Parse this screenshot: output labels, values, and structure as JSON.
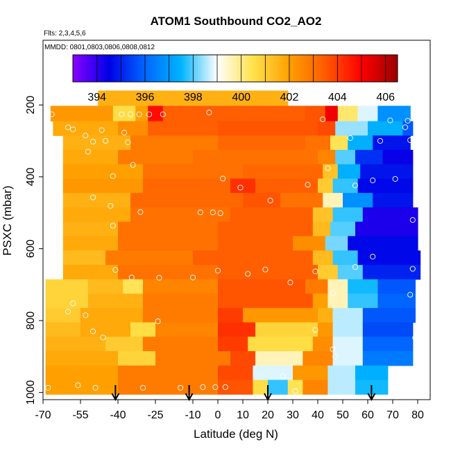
{
  "chart_data": {
    "type": "heatmap",
    "title": "ATOM1 Southbound CO2_AO2",
    "subtitle_flights": "Flts: 2,3,4,5,6",
    "subtitle_dates": "MMDD: 0801,0803,0806,0808,0812",
    "xlabel": "Latitude (deg N)",
    "ylabel": "PSXC (mbar)",
    "xlim": [
      -70,
      85
    ],
    "ylim": [
      1020,
      20
    ],
    "x_ticks": [
      -70,
      -55,
      -40,
      -25,
      -10,
      0,
      10,
      20,
      30,
      40,
      50,
      60,
      70,
      80
    ],
    "x_tick_labels": [
      "-70",
      "-55",
      "-40",
      "-25",
      "-10",
      "0",
      "10",
      "20",
      "30",
      "40",
      "50",
      "60",
      "70",
      "80"
    ],
    "y_ticks": [
      200,
      400,
      600,
      800,
      1000
    ],
    "y_tick_labels": [
      "200",
      "400",
      "600",
      "800",
      "1000"
    ],
    "colorbar": {
      "min": 393,
      "max": 406.5,
      "ticks": [
        394,
        396,
        398,
        400,
        402,
        404,
        406
      ],
      "tick_labels": [
        "394",
        "396",
        "398",
        "400",
        "402",
        "404",
        "406"
      ],
      "colors": [
        "#8a00ff",
        "#0000e6",
        "#0066ff",
        "#00b4ff",
        "#ffffff",
        "#ffe14a",
        "#ffa000",
        "#ff5a00",
        "#ff0000",
        "#990000"
      ]
    },
    "pressure_levels": [
      180,
      225,
      265,
      305,
      345,
      385,
      425,
      465,
      505,
      545,
      585,
      625,
      665,
      705,
      745,
      785,
      825,
      865,
      905,
      945,
      985
    ],
    "segments": [
      {
        "p": 180,
        "cells": [
          [
            -48,
            28,
            401.6
          ]
        ]
      },
      {
        "p": 225,
        "cells": [
          [
            -67,
            -42,
            402.2
          ],
          [
            -42,
            -33,
            400.6
          ],
          [
            -33,
            -28,
            402.0
          ],
          [
            -28,
            -22,
            404.8
          ],
          [
            -22,
            35,
            403.4
          ],
          [
            35,
            43,
            403.6
          ],
          [
            43,
            48,
            405.2
          ],
          [
            48,
            56,
            400.2
          ],
          [
            56,
            64,
            398.8
          ],
          [
            64,
            77,
            396.8
          ]
        ]
      },
      {
        "p": 265,
        "cells": [
          [
            -66,
            -40,
            401.8
          ],
          [
            -40,
            -28,
            402.4
          ],
          [
            -28,
            0,
            403.4
          ],
          [
            0,
            40,
            403.6
          ],
          [
            40,
            47,
            403.8
          ],
          [
            47,
            60,
            398.4
          ],
          [
            60,
            74,
            397.4
          ],
          [
            74,
            78,
            395.8
          ]
        ]
      },
      {
        "p": 305,
        "cells": [
          [
            -62,
            -35,
            401.6
          ],
          [
            -35,
            0,
            402.8
          ],
          [
            0,
            35,
            403.2
          ],
          [
            35,
            45,
            403.0
          ],
          [
            45,
            52,
            400.4
          ],
          [
            52,
            62,
            397.4
          ],
          [
            62,
            77,
            394.8
          ]
        ]
      },
      {
        "p": 345,
        "cells": [
          [
            -62,
            -40,
            401.8
          ],
          [
            -40,
            -10,
            402.8
          ],
          [
            -10,
            40,
            403.0
          ],
          [
            40,
            47,
            402.6
          ],
          [
            47,
            55,
            398.0
          ],
          [
            55,
            66,
            395.2
          ],
          [
            66,
            78,
            394.4
          ]
        ]
      },
      {
        "p": 385,
        "cells": [
          [
            -62,
            -30,
            402.0
          ],
          [
            -30,
            10,
            403.0
          ],
          [
            10,
            42,
            403.2
          ],
          [
            42,
            48,
            401.2
          ],
          [
            48,
            57,
            397.4
          ],
          [
            57,
            78,
            394.8
          ]
        ]
      },
      {
        "p": 425,
        "cells": [
          [
            -62,
            -30,
            402.2
          ],
          [
            -30,
            5,
            403.2
          ],
          [
            5,
            15,
            404.2
          ],
          [
            15,
            40,
            403.4
          ],
          [
            40,
            46,
            401.0
          ],
          [
            46,
            56,
            397.8
          ],
          [
            56,
            78,
            394.6
          ]
        ]
      },
      {
        "p": 465,
        "cells": [
          [
            -62,
            -35,
            401.6
          ],
          [
            -35,
            10,
            403.2
          ],
          [
            10,
            25,
            403.6
          ],
          [
            25,
            42,
            403.0
          ],
          [
            42,
            50,
            399.6
          ],
          [
            50,
            62,
            396.8
          ],
          [
            62,
            78,
            394.8
          ]
        ]
      },
      {
        "p": 505,
        "cells": [
          [
            -62,
            -35,
            401.8
          ],
          [
            -35,
            5,
            403.0
          ],
          [
            5,
            38,
            403.4
          ],
          [
            38,
            46,
            401.2
          ],
          [
            46,
            58,
            397.8
          ],
          [
            58,
            80,
            394.2
          ]
        ]
      },
      {
        "p": 545,
        "cells": [
          [
            -62,
            -40,
            401.6
          ],
          [
            -40,
            0,
            403.0
          ],
          [
            0,
            38,
            403.4
          ],
          [
            38,
            45,
            401.4
          ],
          [
            45,
            55,
            398.0
          ],
          [
            55,
            80,
            394.2
          ]
        ]
      },
      {
        "p": 585,
        "cells": [
          [
            -62,
            -40,
            401.8
          ],
          [
            -40,
            0,
            403.0
          ],
          [
            0,
            30,
            403.4
          ],
          [
            30,
            43,
            402.4
          ],
          [
            43,
            52,
            398.2
          ],
          [
            52,
            80,
            394.6
          ]
        ]
      },
      {
        "p": 625,
        "cells": [
          [
            -62,
            -45,
            401.4
          ],
          [
            -45,
            -10,
            402.8
          ],
          [
            -10,
            38,
            403.4
          ],
          [
            38,
            46,
            401.4
          ],
          [
            46,
            56,
            397.8
          ],
          [
            56,
            81,
            394.6
          ]
        ]
      },
      {
        "p": 665,
        "cells": [
          [
            -62,
            -40,
            401.8
          ],
          [
            -40,
            0,
            403.0
          ],
          [
            0,
            40,
            403.4
          ],
          [
            40,
            48,
            401.0
          ],
          [
            48,
            58,
            398.0
          ],
          [
            58,
            81,
            395.0
          ]
        ]
      },
      {
        "p": 705,
        "cells": [
          [
            -69,
            -52,
            400.8
          ],
          [
            -52,
            -38,
            401.4
          ],
          [
            -38,
            -30,
            400.4
          ],
          [
            -30,
            0,
            402.6
          ],
          [
            0,
            35,
            403.6
          ],
          [
            35,
            44,
            402.8
          ],
          [
            44,
            52,
            399.6
          ],
          [
            52,
            64,
            397.6
          ],
          [
            64,
            79,
            395.8
          ]
        ]
      },
      {
        "p": 745,
        "cells": [
          [
            -69,
            -52,
            400.8
          ],
          [
            -52,
            -30,
            401.6
          ],
          [
            -30,
            0,
            402.8
          ],
          [
            0,
            38,
            403.6
          ],
          [
            38,
            44,
            402.0
          ],
          [
            44,
            52,
            399.6
          ],
          [
            52,
            64,
            397.8
          ],
          [
            64,
            79,
            396.0
          ]
        ]
      },
      {
        "p": 785,
        "cells": [
          [
            -69,
            -55,
            401.0
          ],
          [
            -55,
            -30,
            401.8
          ],
          [
            -30,
            0,
            402.8
          ],
          [
            0,
            10,
            404.0
          ],
          [
            10,
            40,
            402.2
          ],
          [
            40,
            46,
            401.6
          ],
          [
            46,
            58,
            398.6
          ],
          [
            58,
            79,
            395.8
          ]
        ]
      },
      {
        "p": 825,
        "cells": [
          [
            -69,
            -55,
            401.4
          ],
          [
            -55,
            -35,
            401.8
          ],
          [
            -35,
            -25,
            400.6
          ],
          [
            -25,
            0,
            402.6
          ],
          [
            0,
            15,
            404.2
          ],
          [
            15,
            40,
            400.8
          ],
          [
            40,
            46,
            402.2
          ],
          [
            46,
            58,
            398.6
          ],
          [
            58,
            78,
            395.6
          ]
        ]
      },
      {
        "p": 865,
        "cells": [
          [
            -69,
            -45,
            401.6
          ],
          [
            -45,
            -30,
            401.0
          ],
          [
            -30,
            0,
            402.8
          ],
          [
            0,
            12,
            404.0
          ],
          [
            12,
            38,
            400.6
          ],
          [
            38,
            46,
            402.4
          ],
          [
            46,
            58,
            398.8
          ],
          [
            58,
            78,
            396.0
          ]
        ]
      },
      {
        "p": 905,
        "cells": [
          [
            -69,
            -40,
            401.8
          ],
          [
            -40,
            -25,
            400.8
          ],
          [
            -25,
            5,
            402.8
          ],
          [
            5,
            15,
            403.8
          ],
          [
            15,
            34,
            399.6
          ],
          [
            34,
            46,
            402.6
          ],
          [
            46,
            58,
            398.8
          ],
          [
            58,
            78,
            396.4
          ]
        ]
      },
      {
        "p": 945,
        "cells": [
          [
            -69,
            -40,
            402.0
          ],
          [
            -40,
            0,
            402.8
          ],
          [
            0,
            14,
            403.8
          ],
          [
            14,
            30,
            398.8
          ],
          [
            30,
            44,
            402.2
          ],
          [
            44,
            55,
            398.6
          ],
          [
            55,
            68,
            397.4
          ]
        ]
      },
      {
        "p": 985,
        "cells": [
          [
            -69,
            -40,
            402.0
          ],
          [
            -40,
            0,
            402.8
          ],
          [
            0,
            14,
            403.6
          ],
          [
            14,
            20,
            400.6
          ],
          [
            20,
            28,
            397.8
          ],
          [
            28,
            34,
            400.4
          ],
          [
            34,
            44,
            402.6
          ],
          [
            44,
            55,
            398.6
          ],
          [
            55,
            68,
            397.6
          ]
        ]
      }
    ],
    "samples": [
      [
        27.5,
        182
      ],
      [
        -68,
        226
      ],
      [
        -66.5,
        226
      ],
      [
        -38.5,
        226
      ],
      [
        -35,
        226
      ],
      [
        -31.5,
        226
      ],
      [
        -27.5,
        226
      ],
      [
        -22,
        226
      ],
      [
        -3.5,
        221
      ],
      [
        42,
        240
      ],
      [
        69,
        243
      ],
      [
        76,
        244
      ],
      [
        -60,
        262
      ],
      [
        -58,
        268
      ],
      [
        -53,
        285
      ],
      [
        -46.5,
        270
      ],
      [
        75,
        262
      ],
      [
        -50,
        302
      ],
      [
        -45,
        300
      ],
      [
        -52,
        330
      ],
      [
        -36,
        304
      ],
      [
        -37.5,
        277
      ],
      [
        53,
        292
      ],
      [
        65,
        300
      ],
      [
        77,
        298
      ],
      [
        -34,
        367
      ],
      [
        -42,
        398
      ],
      [
        2,
        405
      ],
      [
        44,
        376
      ],
      [
        36,
        422
      ],
      [
        9,
        430
      ],
      [
        55,
        424
      ],
      [
        62,
        410
      ],
      [
        71,
        406
      ],
      [
        -50,
        457
      ],
      [
        -43,
        481
      ],
      [
        -31,
        498
      ],
      [
        -7,
        499
      ],
      [
        -42,
        536
      ],
      [
        21,
        466
      ],
      [
        78,
        520
      ],
      [
        1,
        501
      ],
      [
        -2,
        499
      ],
      [
        62,
        622
      ],
      [
        -41,
        659
      ],
      [
        19,
        658
      ],
      [
        55,
        651
      ],
      [
        78,
        656
      ],
      [
        -69,
        661
      ],
      [
        0,
        661
      ],
      [
        -10,
        680
      ],
      [
        12,
        670
      ],
      [
        29,
        694
      ],
      [
        -23.5,
        681
      ],
      [
        -34.5,
        680
      ],
      [
        39,
        663
      ],
      [
        -58,
        752
      ],
      [
        -53,
        785
      ],
      [
        46,
        724
      ],
      [
        77,
        728
      ],
      [
        -60,
        775
      ],
      [
        -50,
        830
      ],
      [
        -24,
        802
      ],
      [
        -46,
        847
      ],
      [
        39,
        826
      ],
      [
        46,
        880
      ],
      [
        79,
        848
      ],
      [
        47,
        900
      ],
      [
        80,
        905
      ],
      [
        -56,
        980
      ],
      [
        -68,
        987
      ],
      [
        -49,
        987
      ],
      [
        -30,
        987
      ],
      [
        -15,
        987
      ],
      [
        -6,
        985
      ],
      [
        -1,
        985
      ],
      [
        3,
        985
      ],
      [
        31,
        996
      ],
      [
        26,
        955
      ]
    ],
    "arrows_x": [
      -41,
      -11.5,
      20,
      61.5
    ]
  }
}
